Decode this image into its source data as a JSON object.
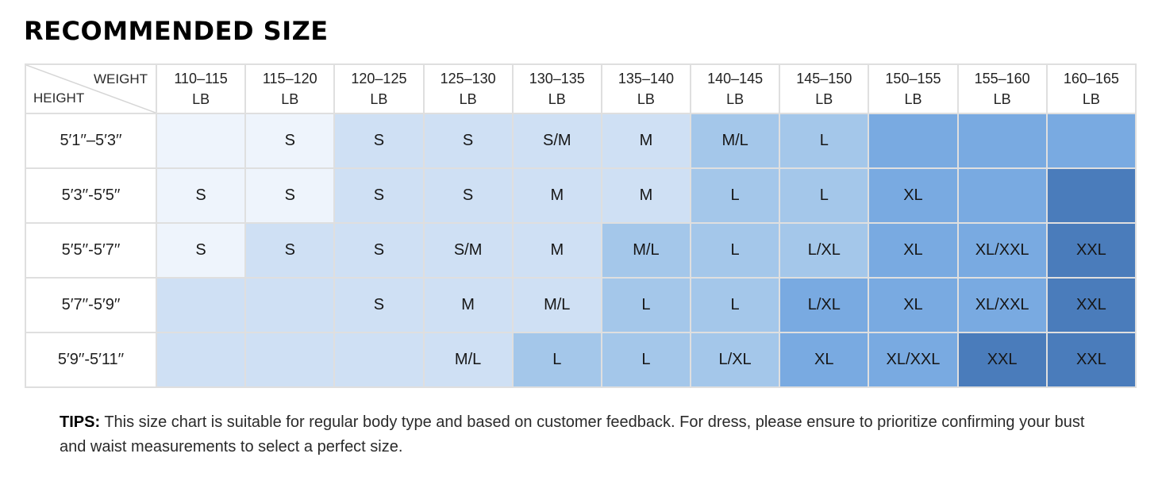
{
  "title": "RECOMMENDED SIZE",
  "tips": {
    "label": "TIPS:",
    "text": " This size chart is suitable for regular body type and based on customer feedback. For dress, please ensure to prioritize confirming your bust and waist measurements to select a perfect size."
  },
  "chart_data": {
    "type": "table",
    "title": "RECOMMENDED SIZE",
    "corner": {
      "weight_label": "WEIGHT",
      "height_label": "HEIGHT"
    },
    "unit": "LB",
    "col_axis": "WEIGHT",
    "row_axis": "HEIGHT",
    "columns": [
      "110–115",
      "115–120",
      "120–125",
      "125–130",
      "130–135",
      "135–140",
      "140–145",
      "145–150",
      "150–155",
      "155–160",
      "160–165"
    ],
    "rows": [
      "5′1′′–5′3′′",
      "5′3′′-5′5′′",
      "5′5′′-5′7′′",
      "5′7′′-5′9′′",
      "5′9′′-5′11′′"
    ],
    "values": [
      [
        "",
        "S",
        "S",
        "S",
        "S/M",
        "M",
        "M/L",
        "L",
        "",
        "",
        ""
      ],
      [
        "S",
        "S",
        "S",
        "S",
        "M",
        "M",
        "L",
        "L",
        "XL",
        "",
        ""
      ],
      [
        "S",
        "S",
        "S",
        "S/M",
        "M",
        "M/L",
        "L",
        "L/XL",
        "XL",
        "XL/XXL",
        "XXL"
      ],
      [
        "",
        "",
        "S",
        "M",
        "M/L",
        "L",
        "L",
        "L/XL",
        "XL",
        "XL/XXL",
        "XXL"
      ],
      [
        "",
        "",
        "",
        "M/L",
        "L",
        "L",
        "L/XL",
        "XL",
        "XL/XXL",
        "XXL",
        "XXL"
      ]
    ],
    "shade_levels": [
      [
        0,
        0,
        1,
        1,
        1,
        1,
        2,
        2,
        3,
        3,
        3
      ],
      [
        0,
        0,
        1,
        1,
        1,
        1,
        2,
        2,
        3,
        3,
        4
      ],
      [
        0,
        1,
        1,
        1,
        1,
        2,
        2,
        2,
        3,
        3,
        4
      ],
      [
        1,
        1,
        1,
        1,
        1,
        2,
        2,
        3,
        3,
        3,
        4
      ],
      [
        1,
        1,
        1,
        1,
        2,
        2,
        2,
        3,
        3,
        4,
        4
      ]
    ],
    "shade_colors": [
      "#eef4fc",
      "#cfe0f4",
      "#a4c7ea",
      "#79aae1",
      "#4a7cbb"
    ],
    "grid_color": "#dfdfdf"
  }
}
